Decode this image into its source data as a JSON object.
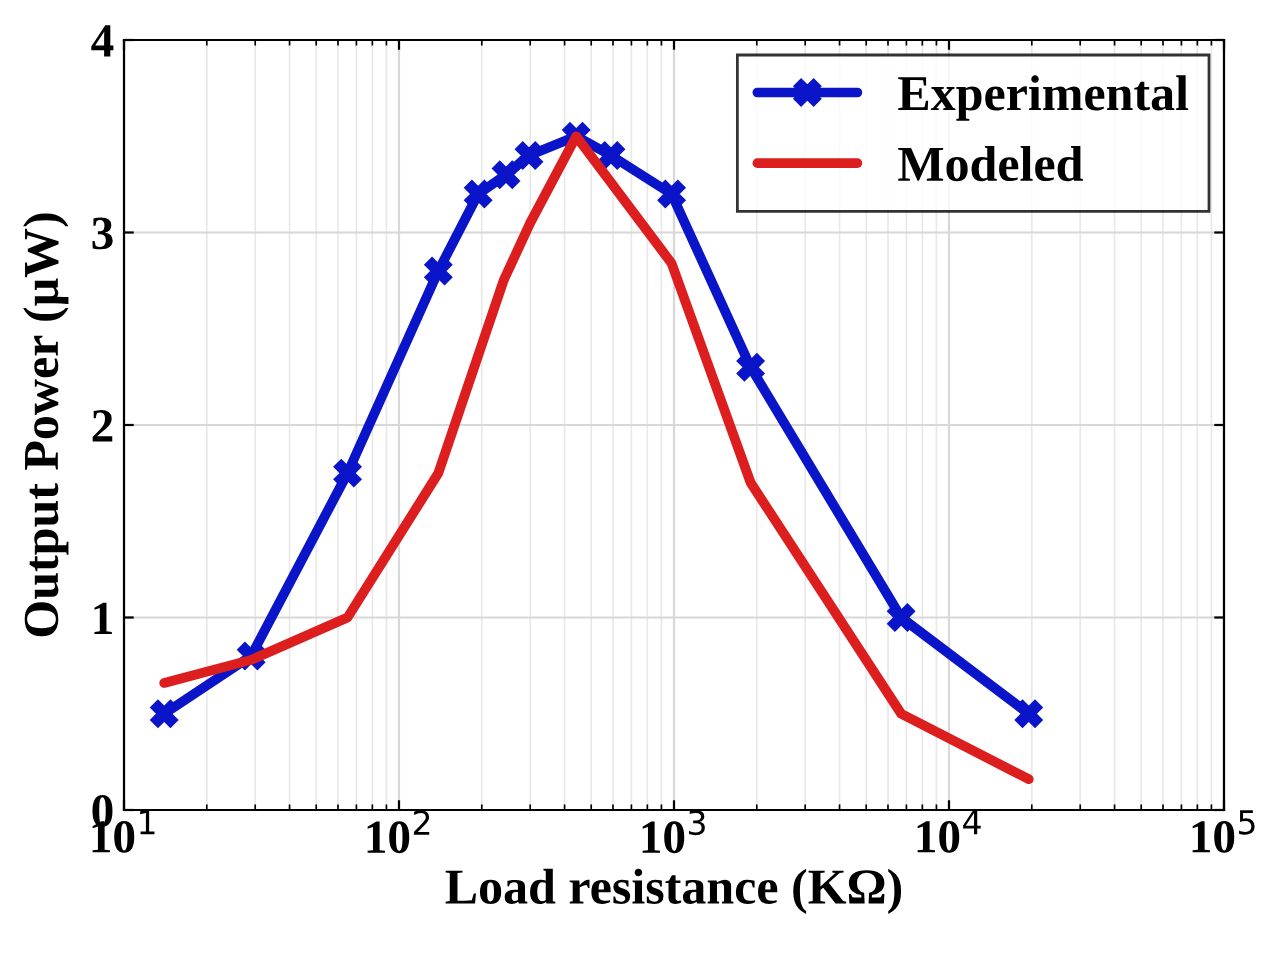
{
  "chart_data": {
    "type": "line",
    "xlabel": "Load resistance (KΩ)",
    "ylabel": "Output Power (μW)",
    "log": "x",
    "xlim": [
      10,
      100000
    ],
    "ylim": [
      0,
      4
    ],
    "xticks": [
      {
        "value": 10,
        "label": "10$^{1}$"
      },
      {
        "value": 100,
        "label": "10$^{2}$"
      },
      {
        "value": 1000,
        "label": "10$^{3}$"
      },
      {
        "value": 10000,
        "label": "10$^{4}$"
      },
      {
        "value": 100000,
        "label": "10$^{5}$"
      }
    ],
    "yticks": [
      0,
      1,
      2,
      3,
      4
    ],
    "grid": true,
    "legend": "top right",
    "line_style": "solid",
    "series": [
      {
        "name": "Experimental",
        "color": "#0a14c8",
        "marker": "cross",
        "x": [
          14,
          29,
          65,
          139,
          194,
          245,
          297,
          441,
          590,
          980,
          1900,
          6700,
          19500
        ],
        "values": [
          0.5,
          0.8,
          1.75,
          2.8,
          3.2,
          3.3,
          3.4,
          3.5,
          3.4,
          3.2,
          2.3,
          1.0,
          0.5
        ]
      },
      {
        "name": "Modeled",
        "color": "#dc1e1e",
        "marker": "none",
        "x": [
          14,
          29,
          65,
          139,
          240,
          300,
          441,
          980,
          1900,
          6700,
          19500
        ],
        "values": [
          0.66,
          0.78,
          1.0,
          1.75,
          2.75,
          3.05,
          3.5,
          2.84,
          1.7,
          0.5,
          0.16
        ]
      }
    ]
  }
}
